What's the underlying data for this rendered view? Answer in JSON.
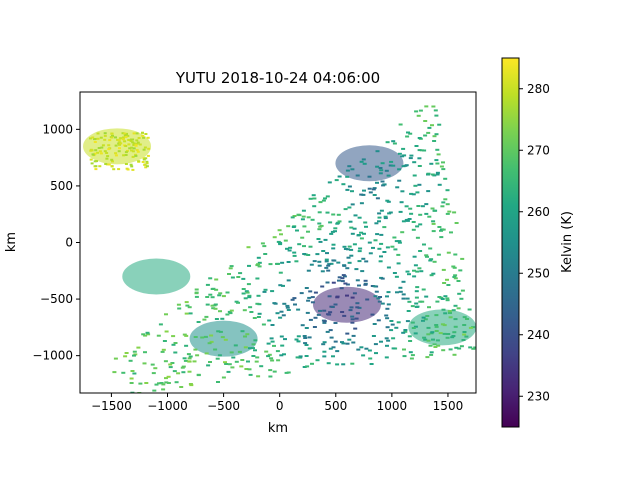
{
  "chart_data": {
    "type": "heatmap",
    "title": "YUTU 2018-10-24 04:06:00",
    "xlabel": "km",
    "ylabel": "km",
    "xlim": [
      -1780,
      1750
    ],
    "ylim": [
      -1330,
      1330
    ],
    "xticks": [
      -1500,
      -1000,
      -500,
      0,
      500,
      1000,
      1500
    ],
    "xtick_labels": [
      "−1500",
      "−1000",
      "−500",
      "0",
      "500",
      "1000",
      "1500"
    ],
    "yticks": [
      -1000,
      -500,
      0,
      500,
      1000
    ],
    "ytick_labels": [
      "−1000",
      "−500",
      "0",
      "500",
      "1000"
    ],
    "colorbar": {
      "label": "Kelvin (K)",
      "colormap": "viridis",
      "range": [
        225,
        285
      ],
      "ticks": [
        230,
        240,
        250,
        260,
        270,
        280
      ],
      "tick_labels": [
        "230",
        "240",
        "250",
        "260",
        "270",
        "280"
      ]
    },
    "swath_corners_km": [
      [
        -1580,
        -1070
      ],
      [
        -1330,
        -1330
      ],
      [
        1750,
        -960
      ],
      [
        1380,
        1330
      ]
    ],
    "regions": [
      {
        "name": "northwest cloud patch",
        "center": [
          -1450,
          850
        ],
        "kelvin": 280
      },
      {
        "name": "northeast cold band",
        "center": [
          800,
          700
        ],
        "kelvin": 242
      },
      {
        "name": "western band",
        "center": [
          -1100,
          -300
        ],
        "kelvin": 262
      },
      {
        "name": "central cold core",
        "center": [
          600,
          -550
        ],
        "kelvin": 232
      },
      {
        "name": "southwest band",
        "center": [
          -500,
          -850
        ],
        "kelvin": 255
      },
      {
        "name": "southeast edge",
        "center": [
          1450,
          -750
        ],
        "kelvin": 262
      }
    ],
    "grid": false
  }
}
